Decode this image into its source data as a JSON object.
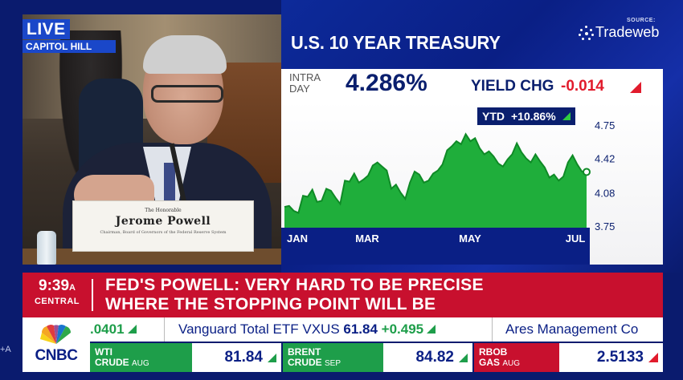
{
  "video": {
    "live_label": "LIVE",
    "location": "CAPITOL HILL",
    "nameplate": {
      "honorable": "The Honorable",
      "name": "Jerome Powell",
      "title": "Chairman, Board of Governors of the Federal Reserve System"
    }
  },
  "header": {
    "title": "U.S. 10 YEAR TREASURY",
    "source_label": "SOURCE:",
    "source_name": "Tradeweb"
  },
  "quote": {
    "intra_line1": "INTRA",
    "intra_line2": "DAY",
    "yield": "4.286%",
    "change_label": "YIELD CHG",
    "change_value": "-0.014"
  },
  "ytd": {
    "label": "YTD",
    "value": "+10.86%"
  },
  "chart_data": {
    "type": "area",
    "x_ticks": [
      "JAN",
      "MAR",
      "MAY",
      "JUL"
    ],
    "y_ticks": [
      "4.75",
      "4.42",
      "4.08",
      "3.75"
    ],
    "ylim": [
      3.75,
      4.75
    ],
    "x": [
      0,
      3,
      6,
      9,
      12,
      15,
      18,
      21,
      24,
      27,
      30,
      33,
      36,
      39,
      42,
      45,
      48,
      51,
      54,
      57,
      60,
      63,
      66,
      69,
      72,
      75,
      78,
      81,
      84,
      87,
      90,
      93,
      96,
      99,
      102,
      105,
      108,
      111,
      114,
      117,
      120,
      123,
      126,
      129,
      132,
      135,
      138,
      141,
      144,
      147,
      150,
      153,
      156,
      159,
      162,
      165,
      168,
      171,
      174,
      177,
      180,
      183,
      186,
      189,
      192,
      195
    ],
    "values": [
      3.94,
      3.95,
      3.9,
      3.88,
      4.05,
      4.04,
      4.11,
      3.99,
      4.0,
      4.12,
      4.1,
      4.03,
      3.97,
      4.2,
      4.19,
      4.27,
      4.18,
      4.21,
      4.25,
      4.35,
      4.38,
      4.34,
      4.3,
      4.12,
      4.16,
      4.08,
      4.02,
      4.18,
      4.29,
      4.26,
      4.18,
      4.2,
      4.27,
      4.3,
      4.36,
      4.5,
      4.54,
      4.59,
      4.56,
      4.66,
      4.59,
      4.62,
      4.52,
      4.46,
      4.49,
      4.44,
      4.37,
      4.34,
      4.41,
      4.46,
      4.57,
      4.48,
      4.42,
      4.38,
      4.46,
      4.39,
      4.33,
      4.23,
      4.26,
      4.2,
      4.24,
      4.38,
      4.45,
      4.36,
      4.29,
      4.286
    ],
    "xlabel": "",
    "ylabel": "",
    "grid": false,
    "colors": {
      "area": "#1fae3b",
      "line": "#0f8a26",
      "marker": "#ffffff"
    }
  },
  "headline": {
    "time": "9:39",
    "ampm": "A",
    "timezone": "CENTRAL",
    "line1": "FED'S POWELL: VERY HARD TO BE PRECISE",
    "line2": "WHERE THE STOPPING POINT WILL BE"
  },
  "ticker": {
    "fragment": ".0401",
    "item_name": "Vanguard Total ETF",
    "item_symbol": "VXUS",
    "item_price": "61.84",
    "item_change": "+0.495",
    "next_item": "Ares Management Co"
  },
  "commodities": [
    {
      "name": "WTI",
      "sub": "CRUDE",
      "month": "AUG",
      "value": "81.84",
      "color": "#1e9e4a"
    },
    {
      "name": "BRENT",
      "sub": "CRUDE",
      "month": "SEP",
      "value": "84.82",
      "color": "#1e9e4a"
    },
    {
      "name": "RBOB",
      "sub": "GAS",
      "month": "AUG",
      "value": "2.5133",
      "color": "#c8102e"
    }
  ],
  "brand": {
    "logo_text": "CNBC",
    "corner_text": "+A"
  },
  "colors": {
    "navy": "#0a1f85",
    "red": "#c8102e",
    "green": "#1e9e4a"
  }
}
